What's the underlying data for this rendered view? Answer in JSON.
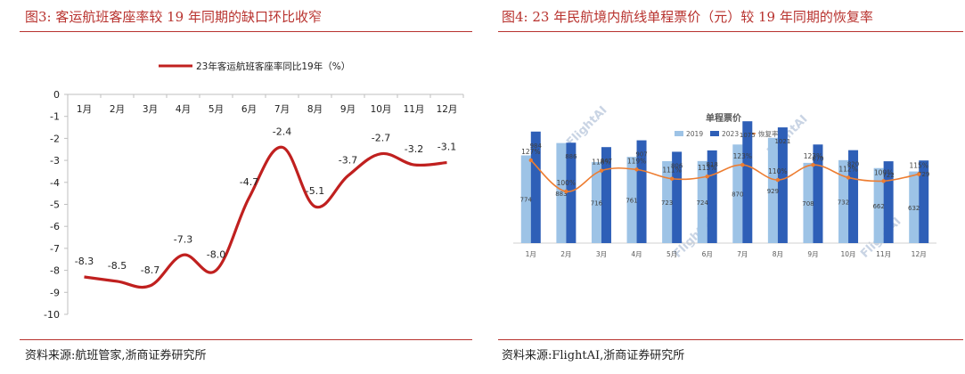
{
  "left_panel": {
    "title": "图3:   客运航班客座率较 19 年同期的缺口环比收窄",
    "source": "资料来源:航班管家,浙商证券研究所"
  },
  "right_panel": {
    "title": "图4:   23 年民航境内航线单程票价（元）较 19 年同期的恢复率",
    "source": "资料来源:FlightAI,浙商证券研究所",
    "watermark": "FlightAI"
  },
  "colors": {
    "title_red": "#b8322e",
    "line_red": "#c0201f",
    "bar_2019": "#9dc3e6",
    "bar_2023": "#2e5fb7",
    "recovery_line": "#ed7d31"
  },
  "chart_data": [
    {
      "type": "line",
      "title": "",
      "categories": [
        "1月",
        "2月",
        "3月",
        "4月",
        "5月",
        "6月",
        "7月",
        "8月",
        "9月",
        "10月",
        "11月",
        "12月"
      ],
      "series": [
        {
          "name": "23年客运航班客座率同比19年（%）",
          "values": [
            -8.3,
            -8.5,
            -8.7,
            -7.3,
            -8.0,
            -4.7,
            -2.4,
            -5.1,
            -3.7,
            -2.7,
            -3.2,
            -3.1
          ]
        }
      ],
      "data_labels": [
        "-8.3",
        "-8.5",
        "-8.7",
        "-7.3",
        "-8.0",
        "-4.7",
        "-2.4",
        "-5.1",
        "-3.7",
        "-2.7",
        "-3.2",
        "-3.1"
      ],
      "yticks": [
        "0",
        "-1",
        "-2",
        "-3",
        "-4",
        "-5",
        "-6",
        "-7",
        "-8",
        "-9",
        "-10"
      ],
      "ylim": [
        -10,
        0
      ],
      "x_axis_position": "top",
      "legend": "top",
      "grid": false,
      "smooth": true
    },
    {
      "type": "bar",
      "title": "单程票价",
      "categories": [
        "1月",
        "2月",
        "3月",
        "4月",
        "5月",
        "6月",
        "7月",
        "8月",
        "9月",
        "10月",
        "11月",
        "12月"
      ],
      "series": [
        {
          "name": "2019",
          "values": [
            774,
            883,
            716,
            761,
            723,
            724,
            870,
            929,
            708,
            732,
            662,
            632
          ]
        },
        {
          "name": "2023",
          "values": [
            984,
            886,
            847,
            907,
            806,
            818,
            1075,
            1021,
            870,
            820,
            722,
            729
          ]
        },
        {
          "name": "恢复率",
          "type": "line",
          "axis": "secondary",
          "values": [
            127,
            100,
            118,
            119,
            111,
            113,
            123,
            110,
            123,
            112,
            109,
            115
          ],
          "labels": [
            "127%",
            "100%",
            "118%",
            "119%",
            "111%",
            "113%",
            "123%",
            "110%",
            "123%",
            "112%",
            "109%",
            "115%"
          ]
        }
      ],
      "labels_2019": [
        "774",
        "883",
        "716",
        "761",
        "723",
        "724",
        "870",
        "929",
        "708",
        "732",
        "662",
        "632"
      ],
      "labels_2023": [
        "984",
        "886",
        "847",
        "907",
        "806",
        "818",
        "1075",
        "1021",
        "870",
        "820",
        "722",
        "729"
      ],
      "legend": "top",
      "grid": false
    }
  ]
}
